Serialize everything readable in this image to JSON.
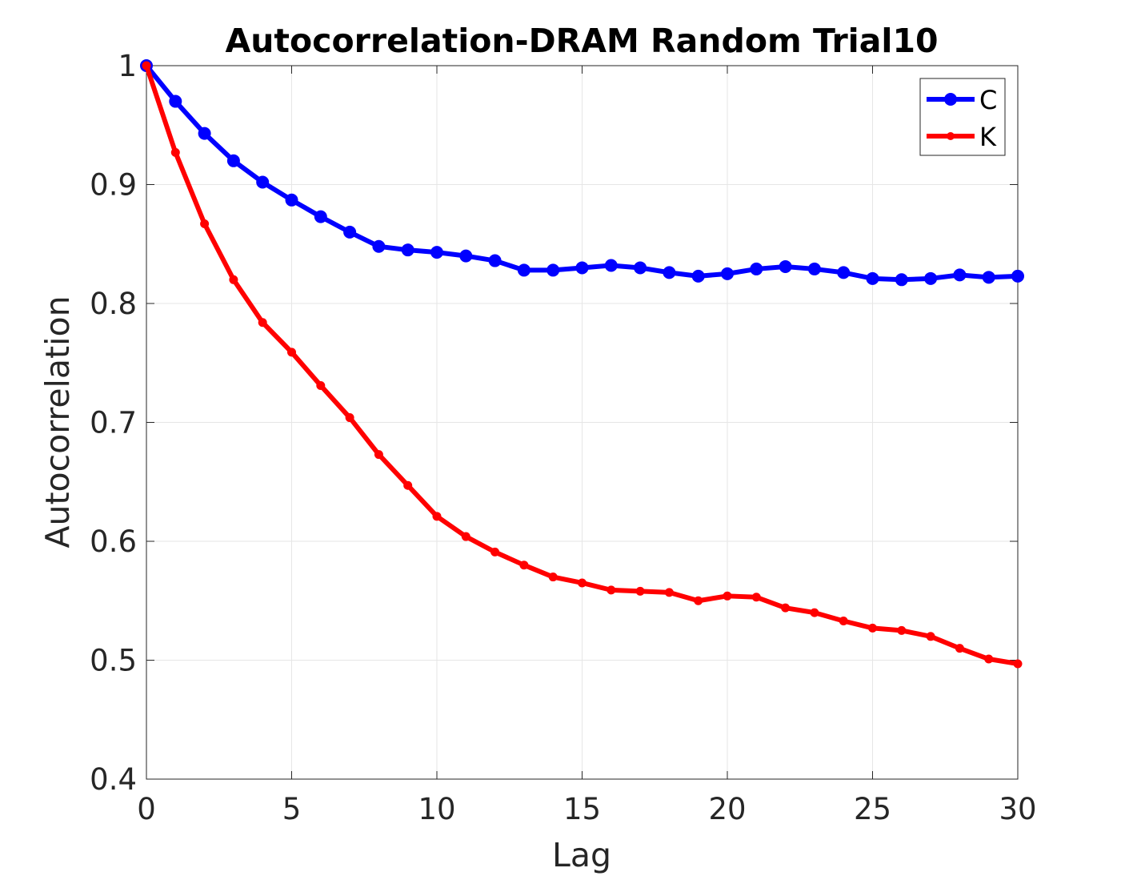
{
  "chart_data": {
    "type": "line",
    "title": "Autocorrelation-DRAM Random Trial10",
    "xlabel": "Lag",
    "ylabel": "Autocorrelation",
    "xlim": [
      0,
      30
    ],
    "ylim": [
      0.4,
      1
    ],
    "xticks": [
      "0",
      "5",
      "10",
      "15",
      "20",
      "25",
      "30"
    ],
    "yticks": [
      "0.4",
      "0.5",
      "0.6",
      "0.7",
      "0.8",
      "0.9",
      "1"
    ],
    "grid": true,
    "legend_position": "top-right",
    "x": [
      0,
      1,
      2,
      3,
      4,
      5,
      6,
      7,
      8,
      9,
      10,
      11,
      12,
      13,
      14,
      15,
      16,
      17,
      18,
      19,
      20,
      21,
      22,
      23,
      24,
      25,
      26,
      27,
      28,
      29,
      30
    ],
    "series": [
      {
        "name": "C",
        "color": "#0000ff",
        "marker": "circle",
        "values": [
          1.0,
          0.97,
          0.943,
          0.92,
          0.902,
          0.887,
          0.873,
          0.86,
          0.848,
          0.845,
          0.843,
          0.84,
          0.836,
          0.828,
          0.828,
          0.83,
          0.832,
          0.83,
          0.826,
          0.823,
          0.825,
          0.829,
          0.831,
          0.829,
          0.826,
          0.821,
          0.82,
          0.821,
          0.824,
          0.822,
          0.823
        ]
      },
      {
        "name": "K",
        "color": "#ff0000",
        "marker": "dot",
        "values": [
          1.0,
          0.927,
          0.867,
          0.82,
          0.784,
          0.759,
          0.731,
          0.704,
          0.673,
          0.647,
          0.621,
          0.604,
          0.591,
          0.58,
          0.57,
          0.565,
          0.559,
          0.558,
          0.557,
          0.55,
          0.554,
          0.553,
          0.544,
          0.54,
          0.533,
          0.527,
          0.525,
          0.52,
          0.51,
          0.501,
          0.497
        ]
      }
    ]
  }
}
